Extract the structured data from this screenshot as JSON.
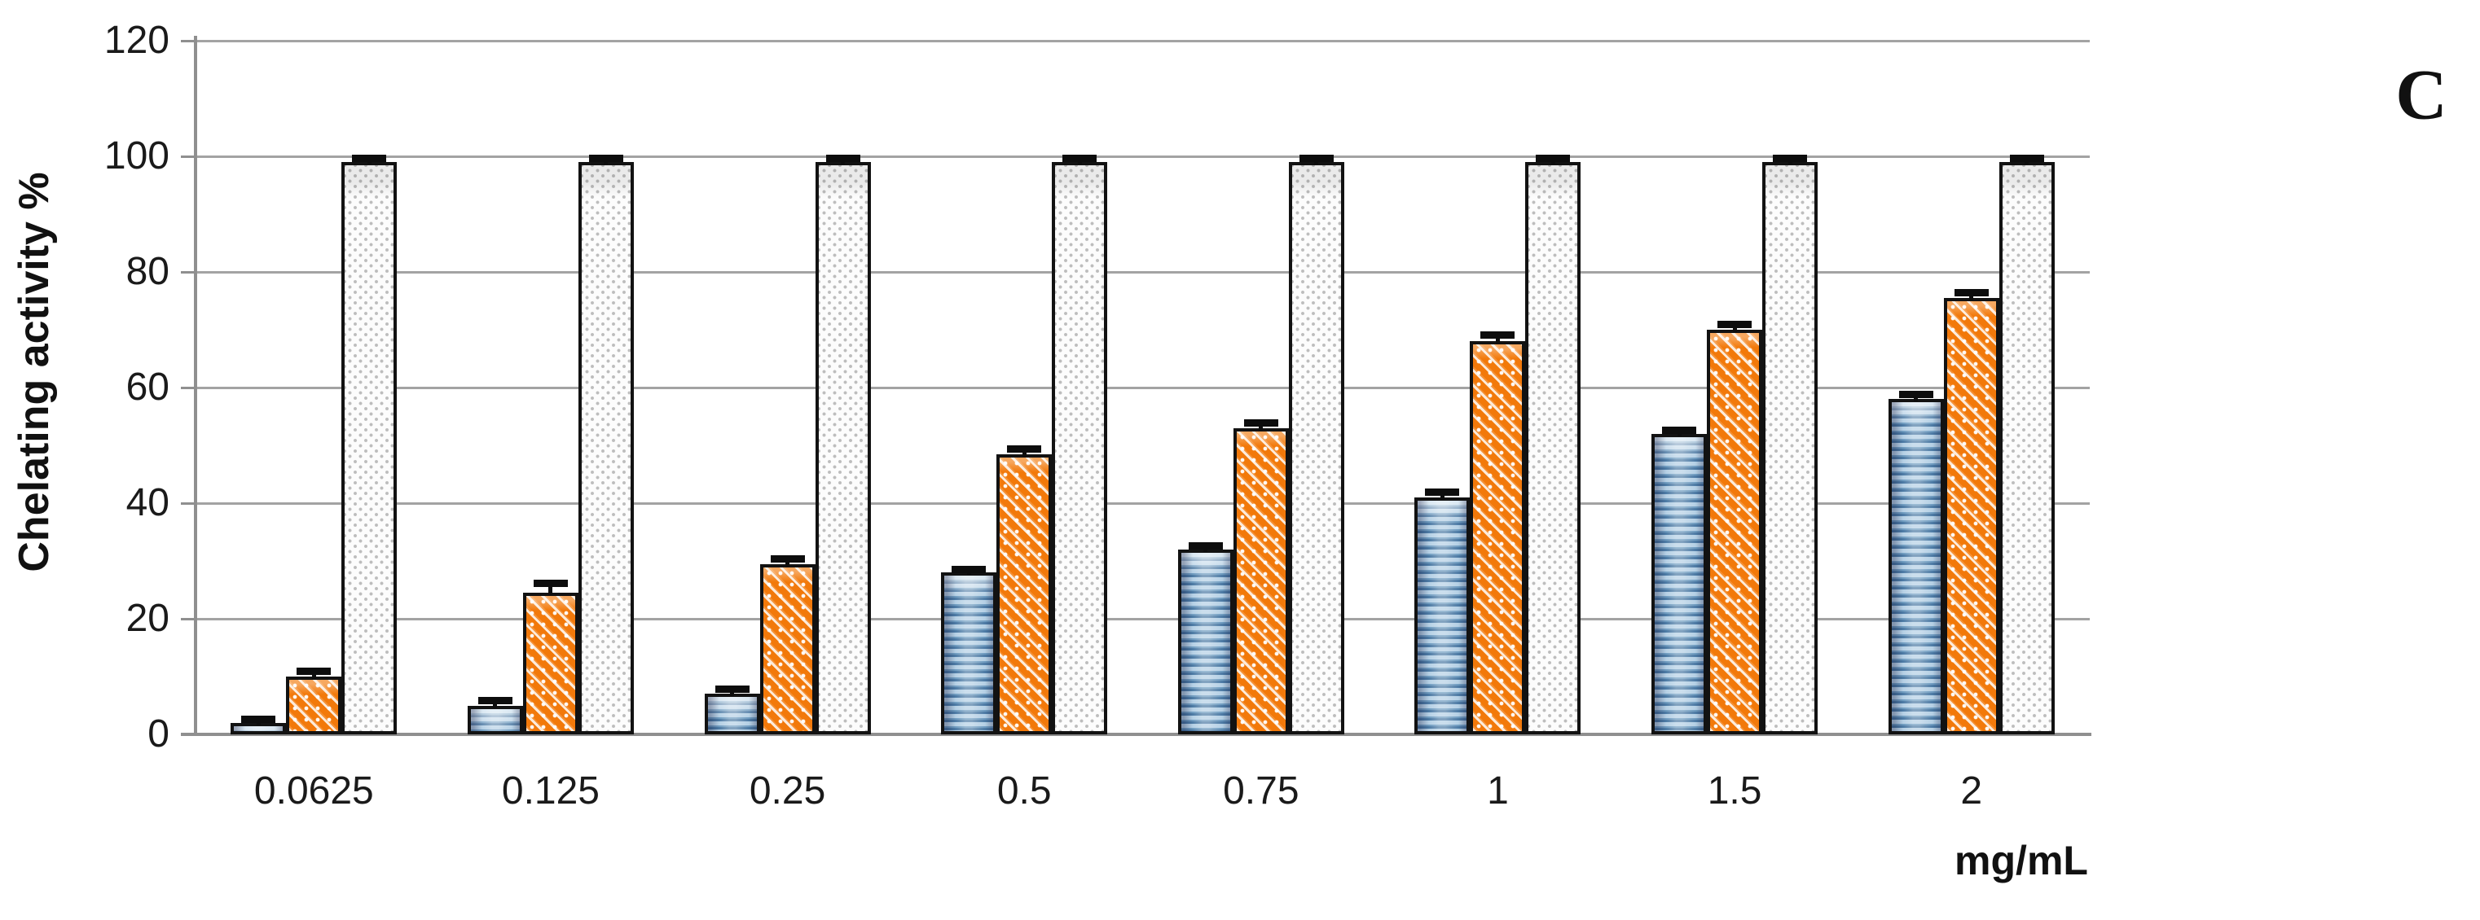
{
  "panel_label": "C",
  "axes": {
    "y_title": "Chelating activity %",
    "x_unit_label": "mg/mL",
    "y_ticks": [
      0,
      20,
      40,
      60,
      80,
      100,
      120
    ]
  },
  "colors": {
    "blue_bar": "#4d7ba5",
    "blue_bar_light": "#b5d0e5",
    "orange_bar": "#f2790a",
    "gray_bar": "#fcfcfc",
    "gray_dot": "#bdbdbd",
    "bar_outline": "#121212",
    "gridline": "#a3a3a3",
    "axis_line": "#8f8f8f",
    "text": "#1a1a1a"
  },
  "chart_data": {
    "type": "bar",
    "title": "",
    "xlabel": "mg/mL",
    "ylabel": "Chelating activity %",
    "ylim": [
      0,
      120
    ],
    "grid": true,
    "legend_position": "none",
    "categories": [
      "0.0625",
      "0.125",
      "0.25",
      "0.5",
      "0.75",
      "1",
      "1.5",
      "2"
    ],
    "series": [
      {
        "name": "blue-horizontal-stripe-bar",
        "values": [
          2,
          5,
          7,
          28,
          32,
          41,
          52,
          58
        ],
        "errors": [
          0.5,
          0.8,
          0.8,
          0.5,
          0.6,
          0.8,
          0.5,
          0.8
        ]
      },
      {
        "name": "orange-diagonal-stripe-bar",
        "values": [
          10,
          24.5,
          29.5,
          48.5,
          53,
          68,
          70,
          75.5
        ],
        "errors": [
          0.8,
          1.5,
          0.8,
          0.8,
          0.8,
          1.0,
          0.8,
          0.8
        ]
      },
      {
        "name": "gray-dotted-bar",
        "values": [
          99,
          99,
          99,
          99,
          99,
          99,
          99,
          99
        ],
        "errors": [
          0.6,
          0.6,
          0.6,
          0.6,
          0.6,
          0.6,
          0.6,
          0.6
        ]
      }
    ]
  }
}
